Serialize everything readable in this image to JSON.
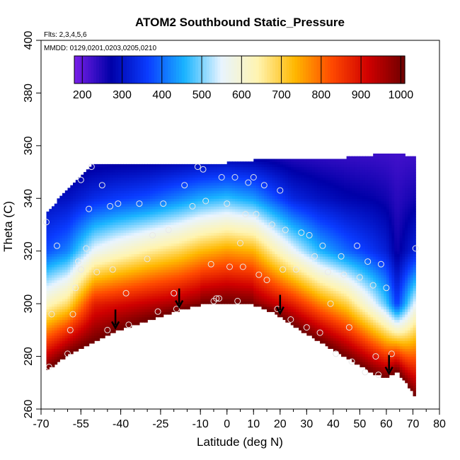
{
  "chart_data": {
    "type": "heatmap",
    "title": "ATOM2 Southbound Static_Pressure",
    "subtitle_flights": "Flts: 2,3,4,5,6",
    "subtitle_dates": "MMDD: 0129,0201,0203,0205,0210",
    "xlabel": "Latitude (deg N)",
    "ylabel": "Theta (C)",
    "xlim": [
      -70,
      80
    ],
    "ylim": [
      260,
      400
    ],
    "x_ticks": [
      -70,
      -55,
      -40,
      -25,
      -10,
      0,
      10,
      20,
      30,
      40,
      50,
      60,
      70,
      80
    ],
    "y_ticks": [
      260,
      280,
      300,
      320,
      340,
      360,
      380,
      400
    ],
    "colorbar": {
      "range": [
        180,
        1010
      ],
      "ticks": [
        200,
        300,
        400,
        500,
        600,
        700,
        800,
        900,
        1000
      ],
      "colors": [
        "#7a1fe8",
        "#0000a8",
        "#0a3cff",
        "#1ab4ff",
        "#e8f4ff",
        "#fff4b0",
        "#ffb800",
        "#ff4a00",
        "#d00000",
        "#6e0000"
      ]
    },
    "field": {
      "description": "pressure (hPa) vs latitude and theta",
      "lat_nodes": [
        -68,
        -60,
        -50,
        -42,
        -30,
        -18,
        -10,
        0,
        10,
        18,
        25,
        35,
        45,
        55,
        60,
        64,
        71
      ],
      "surface_theta": [
        275,
        281,
        286,
        290,
        294,
        298,
        300,
        301,
        300,
        297,
        292,
        286,
        280,
        274,
        272,
        275,
        265
      ],
      "top_theta": [
        334,
        343,
        353,
        353,
        353,
        353,
        353,
        353,
        354,
        355,
        355,
        355,
        355,
        356,
        357,
        357,
        355
      ],
      "p_at_300": [
        620,
        680,
        880,
        900,
        930,
        960,
        990,
        1010,
        990,
        930,
        880,
        780,
        700,
        560,
        480,
        360,
        560
      ],
      "p_at_320": [
        380,
        420,
        560,
        600,
        650,
        690,
        730,
        760,
        740,
        640,
        560,
        460,
        400,
        350,
        320,
        260,
        330
      ],
      "p_at_340": [
        290,
        300,
        340,
        360,
        380,
        420,
        450,
        470,
        440,
        380,
        330,
        300,
        280,
        270,
        260,
        240,
        260
      ],
      "p_top": 220
    },
    "arrows_lat": [
      -42,
      -18,
      20,
      61
    ],
    "observations": [
      {
        "lat": -68,
        "theta": 331
      },
      {
        "lat": -67,
        "theta": 276
      },
      {
        "lat": -66,
        "theta": 296
      },
      {
        "lat": -64,
        "theta": 322
      },
      {
        "lat": -60,
        "theta": 281
      },
      {
        "lat": -59,
        "theta": 290
      },
      {
        "lat": -58,
        "theta": 296
      },
      {
        "lat": -57,
        "theta": 306
      },
      {
        "lat": -56,
        "theta": 316
      },
      {
        "lat": -55,
        "theta": 347
      },
      {
        "lat": -55,
        "theta": 313
      },
      {
        "lat": -53,
        "theta": 321
      },
      {
        "lat": -52,
        "theta": 336
      },
      {
        "lat": -51,
        "theta": 352
      },
      {
        "lat": -49,
        "theta": 312
      },
      {
        "lat": -47,
        "theta": 345
      },
      {
        "lat": -45,
        "theta": 290
      },
      {
        "lat": -44,
        "theta": 337
      },
      {
        "lat": -43,
        "theta": 313
      },
      {
        "lat": -41,
        "theta": 338
      },
      {
        "lat": -38,
        "theta": 304
      },
      {
        "lat": -37,
        "theta": 292
      },
      {
        "lat": -33,
        "theta": 338
      },
      {
        "lat": -30,
        "theta": 317
      },
      {
        "lat": -28,
        "theta": 326
      },
      {
        "lat": -26,
        "theta": 297
      },
      {
        "lat": -24,
        "theta": 338
      },
      {
        "lat": -22,
        "theta": 328
      },
      {
        "lat": -20,
        "theta": 304
      },
      {
        "lat": -19,
        "theta": 298
      },
      {
        "lat": -16,
        "theta": 345
      },
      {
        "lat": -13,
        "theta": 337
      },
      {
        "lat": -11,
        "theta": 352
      },
      {
        "lat": -9,
        "theta": 351
      },
      {
        "lat": -8,
        "theta": 339
      },
      {
        "lat": -6,
        "theta": 315
      },
      {
        "lat": -5,
        "theta": 301
      },
      {
        "lat": -4,
        "theta": 302
      },
      {
        "lat": -3,
        "theta": 302
      },
      {
        "lat": -2,
        "theta": 348
      },
      {
        "lat": 0,
        "theta": 338
      },
      {
        "lat": 1,
        "theta": 314
      },
      {
        "lat": 3,
        "theta": 348
      },
      {
        "lat": 4,
        "theta": 301
      },
      {
        "lat": 5,
        "theta": 323
      },
      {
        "lat": 6,
        "theta": 314
      },
      {
        "lat": 7,
        "theta": 334
      },
      {
        "lat": 8,
        "theta": 346
      },
      {
        "lat": 10,
        "theta": 348
      },
      {
        "lat": 11,
        "theta": 334
      },
      {
        "lat": 12,
        "theta": 311
      },
      {
        "lat": 14,
        "theta": 345
      },
      {
        "lat": 15,
        "theta": 309
      },
      {
        "lat": 17,
        "theta": 330
      },
      {
        "lat": 19,
        "theta": 298
      },
      {
        "lat": 20,
        "theta": 343
      },
      {
        "lat": 21,
        "theta": 313
      },
      {
        "lat": 22,
        "theta": 328
      },
      {
        "lat": 24,
        "theta": 294
      },
      {
        "lat": 26,
        "theta": 313
      },
      {
        "lat": 28,
        "theta": 327
      },
      {
        "lat": 30,
        "theta": 291
      },
      {
        "lat": 31,
        "theta": 326
      },
      {
        "lat": 33,
        "theta": 318
      },
      {
        "lat": 35,
        "theta": 289
      },
      {
        "lat": 36,
        "theta": 322
      },
      {
        "lat": 38,
        "theta": 312
      },
      {
        "lat": 39,
        "theta": 300
      },
      {
        "lat": 41,
        "theta": 281
      },
      {
        "lat": 43,
        "theta": 318
      },
      {
        "lat": 44,
        "theta": 311
      },
      {
        "lat": 46,
        "theta": 291
      },
      {
        "lat": 47,
        "theta": 278
      },
      {
        "lat": 49,
        "theta": 322
      },
      {
        "lat": 50,
        "theta": 310
      },
      {
        "lat": 52,
        "theta": 274
      },
      {
        "lat": 53,
        "theta": 316
      },
      {
        "lat": 55,
        "theta": 307
      },
      {
        "lat": 56,
        "theta": 280
      },
      {
        "lat": 57,
        "theta": 273
      },
      {
        "lat": 58,
        "theta": 315
      },
      {
        "lat": 60,
        "theta": 306
      },
      {
        "lat": 62,
        "theta": 281
      },
      {
        "lat": 71,
        "theta": 321
      }
    ]
  }
}
